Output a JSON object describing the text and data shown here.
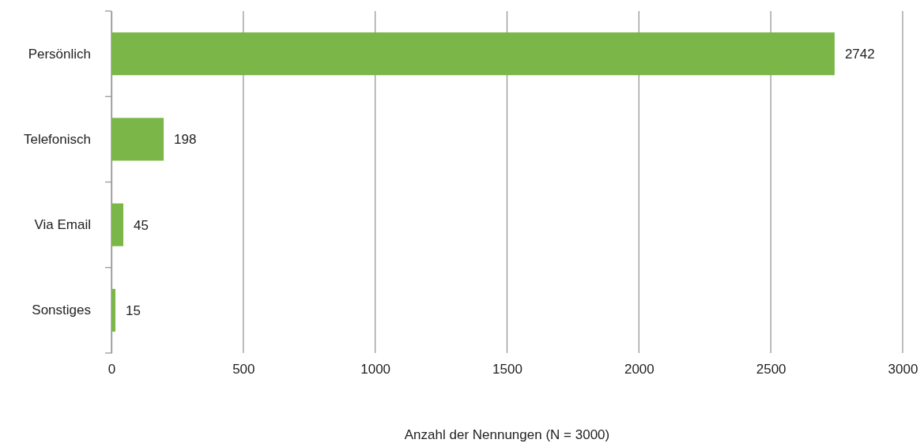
{
  "chart_data": {
    "type": "bar",
    "orientation": "horizontal",
    "xlabel": "Anzahl der Nennungen (N = 3000)",
    "categories": [
      "Persönlich",
      "Telefonisch",
      "Via Email",
      "Sonstiges"
    ],
    "values": [
      2742,
      198,
      45,
      15
    ],
    "color": "#7ab648",
    "xlim": [
      0,
      3000
    ],
    "xticks": [
      0,
      500,
      1000,
      1500,
      2000,
      2500,
      3000
    ],
    "grid": "x",
    "data_labels": true
  }
}
